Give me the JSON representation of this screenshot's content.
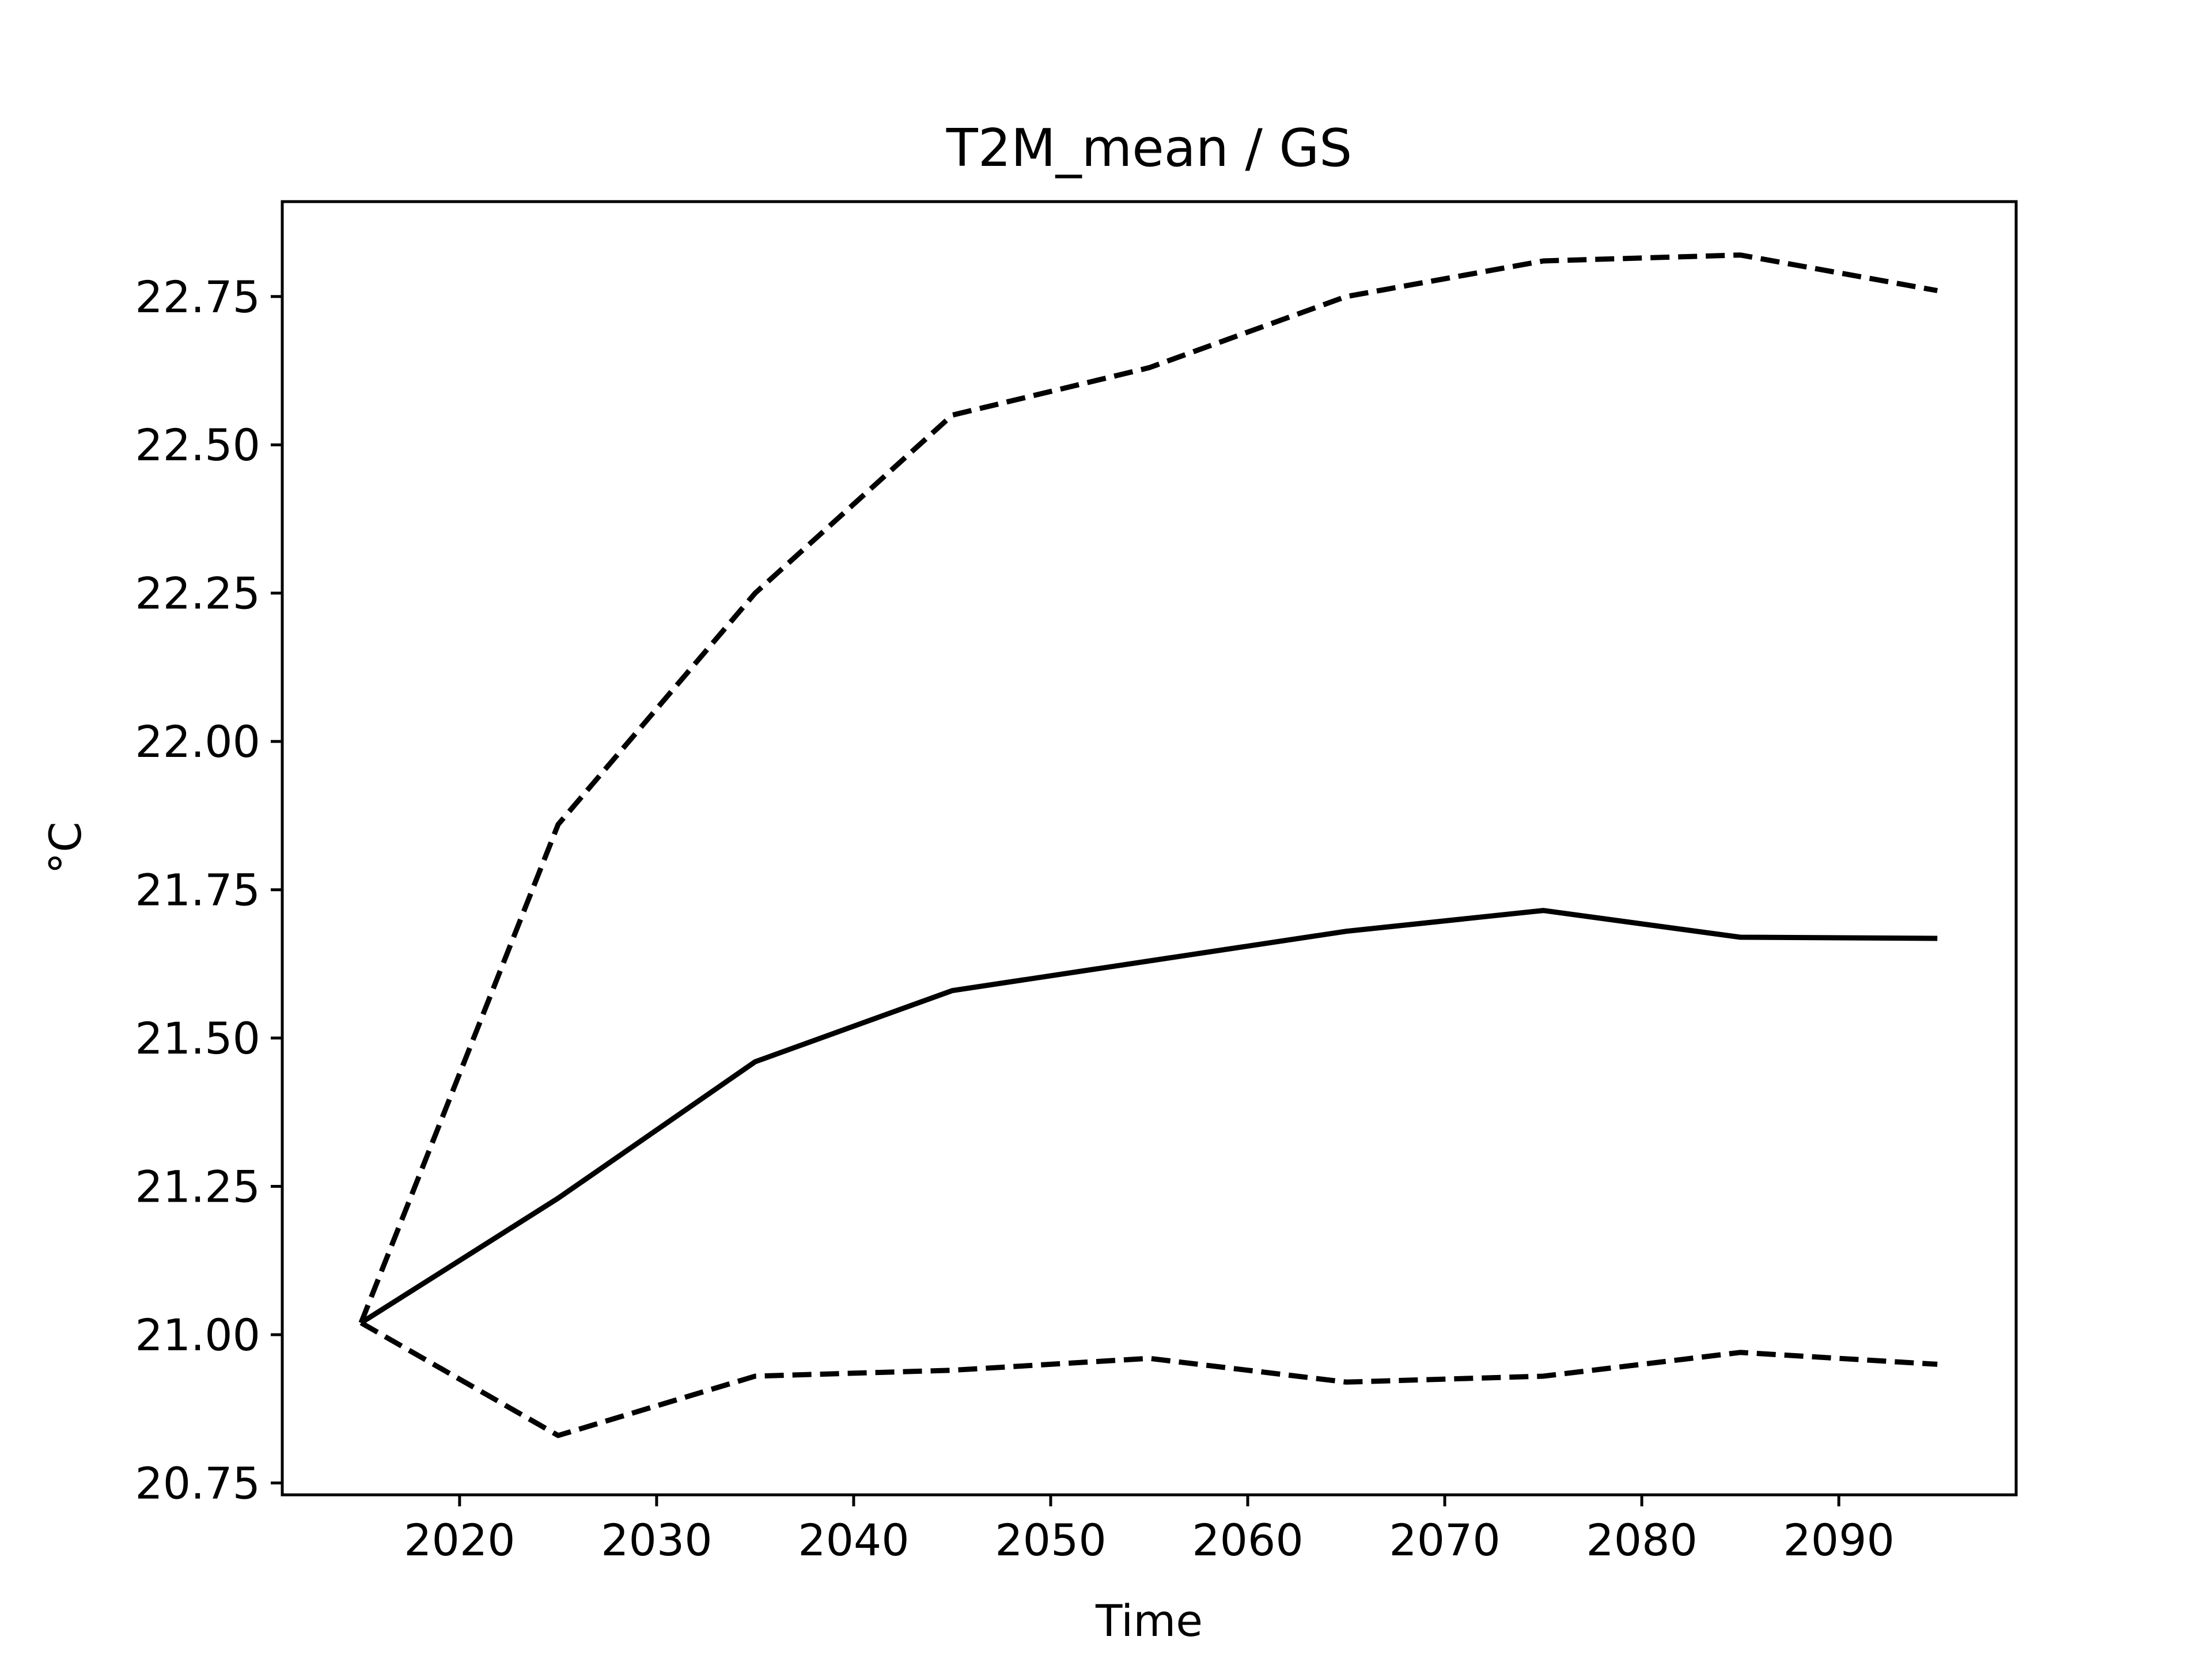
{
  "chart_data": {
    "type": "line",
    "title": "T2M_mean / GS",
    "xlabel": "Time",
    "ylabel": "°C",
    "xlim": [
      2011,
      2099
    ],
    "ylim": [
      20.73,
      22.91
    ],
    "xticks": [
      2020,
      2030,
      2040,
      2050,
      2060,
      2070,
      2080,
      2090
    ],
    "xtick_labels": [
      "2020",
      "2030",
      "2040",
      "2050",
      "2060",
      "2070",
      "2080",
      "2090"
    ],
    "yticks": [
      20.75,
      21.0,
      21.25,
      21.5,
      21.75,
      22.0,
      22.25,
      22.5,
      22.75
    ],
    "ytick_labels": [
      "20.75",
      "21.00",
      "21.25",
      "21.50",
      "21.75",
      "22.00",
      "22.25",
      "22.50",
      "22.75"
    ],
    "grid": false,
    "legend": "none",
    "x": [
      2015,
      2025,
      2035,
      2045,
      2055,
      2065,
      2075,
      2085,
      2095
    ],
    "series": [
      {
        "style": "solid",
        "color": "#000000",
        "values": [
          21.02,
          21.23,
          21.46,
          21.58,
          21.63,
          21.68,
          21.715,
          21.67,
          21.668
        ]
      },
      {
        "style": "dashed",
        "color": "#000000",
        "values": [
          21.02,
          21.86,
          22.25,
          22.55,
          22.63,
          22.75,
          22.81,
          22.82,
          22.76
        ]
      },
      {
        "style": "dashed",
        "color": "#000000",
        "values": [
          21.02,
          20.83,
          20.93,
          20.94,
          20.96,
          20.92,
          20.93,
          20.97,
          20.95
        ]
      }
    ]
  }
}
